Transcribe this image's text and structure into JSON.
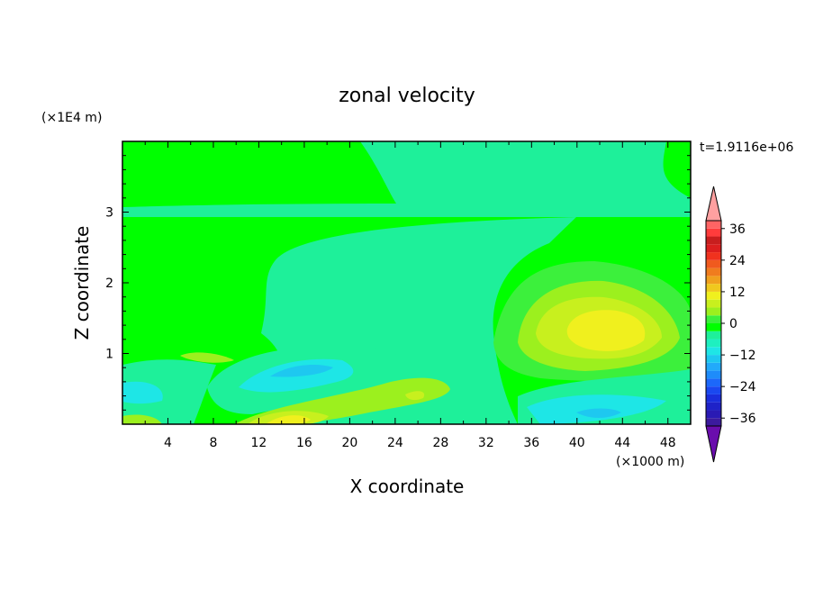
{
  "chart_data": {
    "type": "heatmap",
    "title": "zonal velocity",
    "xlabel": "X coordinate",
    "ylabel": "Z coordinate",
    "x_unit": "(×1000 m)",
    "y_unit": "(×1E4 m)",
    "time_label": "t=1.9116e+06",
    "xlim": [
      0,
      50
    ],
    "ylim": [
      0,
      4
    ],
    "x_ticks": [
      "4",
      "8",
      "12",
      "16",
      "20",
      "24",
      "28",
      "32",
      "36",
      "40",
      "44",
      "48"
    ],
    "y_ticks": [
      "1",
      "2",
      "3"
    ],
    "colorbar": {
      "levels": [
        -42,
        -39,
        -36,
        -33,
        -30,
        -27,
        -24,
        -21,
        -18,
        -15,
        -12,
        -9,
        -6,
        -3,
        0,
        3,
        6,
        9,
        12,
        15,
        18,
        21,
        24,
        27,
        30,
        33,
        36,
        39,
        42
      ],
      "colors": [
        "#6a0dad",
        "#3c1a9e",
        "#2a1ab4",
        "#1e22c8",
        "#1a2edc",
        "#1a48f0",
        "#1c68fa",
        "#1e8cfa",
        "#22aafa",
        "#1ec8f0",
        "#1ee6e6",
        "#1ef0c0",
        "#1ef09a",
        "#00ff00",
        "#3cf03c",
        "#9cf01e",
        "#c8f01e",
        "#f0f01e",
        "#f0c81e",
        "#f0a01e",
        "#f07c1e",
        "#f05a1e",
        "#f0321e",
        "#dc1e1e",
        "#c81e1e",
        "#ff3c3c",
        "#ff6464",
        "#ffa0a0"
      ],
      "tick_labels": [
        "36",
        "24",
        "12",
        "0",
        "−12",
        "−24",
        "−36"
      ],
      "tick_values": [
        36,
        24,
        12,
        0,
        -12,
        -24,
        -36
      ]
    },
    "notes": "2D filled-contour field of zonal velocity u(x,z); approximate features listed",
    "features": [
      {
        "desc": "positive jet (up to ~15)",
        "x": 42,
        "z": 1.3,
        "value": 15
      },
      {
        "desc": "weak positive",
        "x": 40,
        "z": 1.5,
        "value": 8
      },
      {
        "desc": "negative near surface",
        "x": 41,
        "z": 0.25,
        "value": -15
      },
      {
        "desc": "negative core",
        "x": 18,
        "z": 0.8,
        "value": -10
      },
      {
        "desc": "positive near-surface max",
        "x": 15,
        "z": 0.1,
        "value": 12
      },
      {
        "desc": "positive tongue",
        "x": 26,
        "z": 0.45,
        "value": 8
      },
      {
        "desc": "near-zero upper layer",
        "x": 30,
        "z": 3.5,
        "value": -2
      },
      {
        "desc": "negative near left surface",
        "x": 3,
        "z": 0.45,
        "value": -8
      }
    ]
  }
}
